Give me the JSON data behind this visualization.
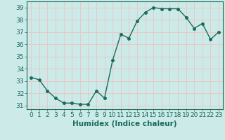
{
  "x": [
    0,
    1,
    2,
    3,
    4,
    5,
    6,
    7,
    8,
    9,
    10,
    11,
    12,
    13,
    14,
    15,
    16,
    17,
    18,
    19,
    20,
    21,
    22,
    23
  ],
  "y": [
    33.3,
    33.1,
    32.2,
    31.6,
    31.2,
    31.2,
    31.1,
    31.1,
    32.2,
    31.6,
    34.7,
    36.8,
    36.5,
    37.9,
    38.6,
    39.0,
    38.9,
    38.9,
    38.9,
    38.2,
    37.3,
    37.7,
    36.4,
    37.0
  ],
  "xlabel": "Humidex (Indice chaleur)",
  "xlim": [
    -0.5,
    23.5
  ],
  "ylim": [
    30.7,
    39.5
  ],
  "yticks": [
    31,
    32,
    33,
    34,
    35,
    36,
    37,
    38,
    39
  ],
  "xticks": [
    0,
    1,
    2,
    3,
    4,
    5,
    6,
    7,
    8,
    9,
    10,
    11,
    12,
    13,
    14,
    15,
    16,
    17,
    18,
    19,
    20,
    21,
    22,
    23
  ],
  "line_color": "#1a6b5e",
  "marker": "o",
  "markersize": 2.5,
  "linewidth": 1.0,
  "bg_color": "#cceae7",
  "grid_color": "#e8c8c8",
  "tick_label_fontsize": 6.5,
  "xlabel_fontsize": 7.5
}
